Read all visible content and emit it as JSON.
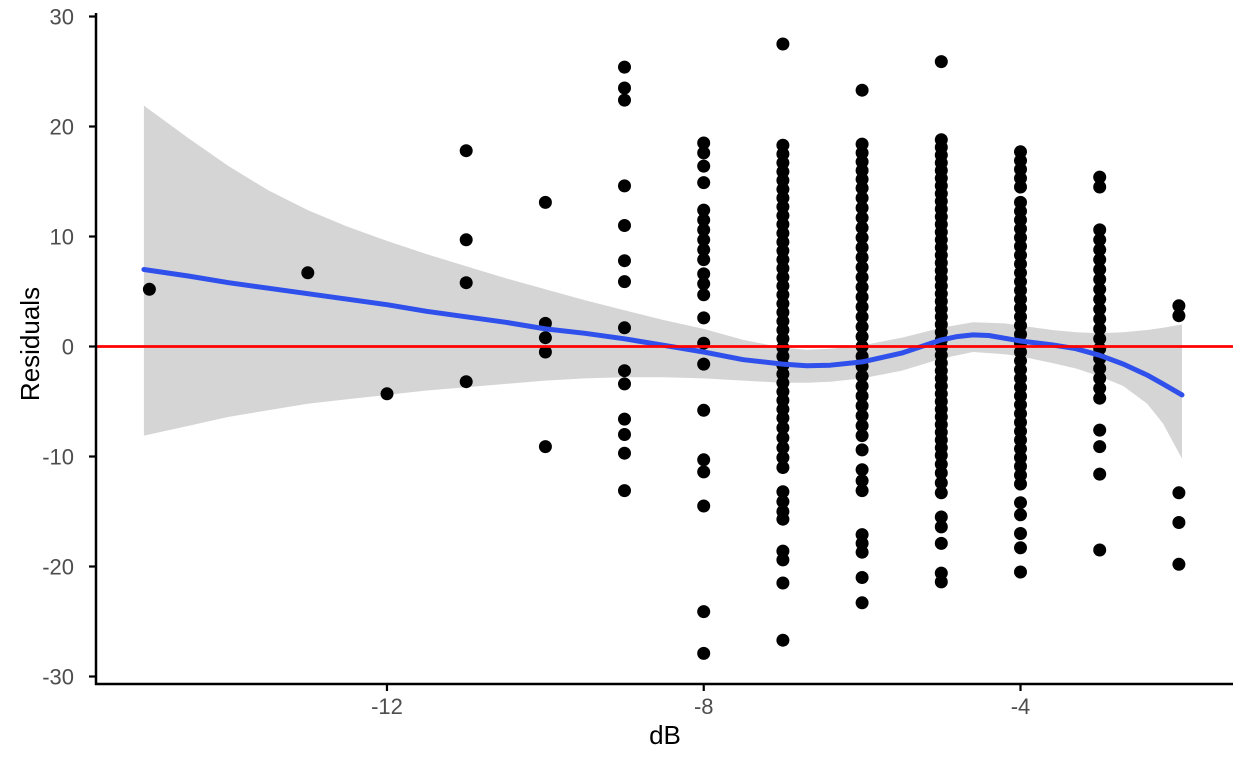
{
  "chart_data": {
    "type": "scatter",
    "title": "",
    "xlabel": "dB",
    "ylabel": "Residuals",
    "x_ticks": [
      -12,
      -8,
      -4
    ],
    "y_ticks": [
      30,
      20,
      10,
      0,
      -10,
      -20,
      -30
    ],
    "xlim": [
      -15.66,
      -1.32
    ],
    "ylim": [
      -30.7,
      30.2
    ],
    "grid": false,
    "legend": "none",
    "zero_line_y": 0,
    "colors": {
      "point": "#000000",
      "smooth": "#3050EC",
      "ribbon": "#D5D5D5",
      "zero_line": "#FF0000",
      "axis": "#000000",
      "tick_label": "#4D4D4D",
      "axis_title": "#000000"
    },
    "columns": [
      {
        "x": -15,
        "residuals": [
          5.2
        ]
      },
      {
        "x": -13,
        "residuals": [
          6.7
        ]
      },
      {
        "x": -12,
        "residuals": [
          -4.3
        ]
      },
      {
        "x": -11,
        "residuals": [
          17.8,
          9.7,
          5.8,
          -3.2
        ]
      },
      {
        "x": -10,
        "residuals": [
          13.1,
          2.1,
          0.8,
          -0.5,
          -9.1
        ]
      },
      {
        "x": -9,
        "residuals": [
          25.4,
          23.5,
          22.4,
          14.6,
          11.0,
          7.8,
          5.9,
          1.7,
          -2.2,
          -3.4,
          -6.6,
          -8.0,
          -9.7,
          -13.1
        ]
      },
      {
        "x": -8,
        "residuals": [
          18.5,
          17.6,
          16.4,
          14.9,
          12.4,
          11.5,
          10.6,
          9.7,
          8.8,
          7.9,
          6.6,
          5.7,
          4.7,
          2.6,
          0.3,
          -1.6,
          -5.8,
          -10.3,
          -11.4,
          -14.5,
          -24.1,
          -27.9
        ]
      },
      {
        "x": -7,
        "residuals": [
          27.5,
          18.3,
          17.5,
          16.7,
          15.9,
          15.1,
          14.3,
          13.5,
          12.7,
          11.9,
          11.1,
          10.3,
          9.5,
          8.7,
          7.9,
          7.1,
          6.3,
          5.5,
          4.7,
          3.9,
          3.1,
          2.3,
          1.5,
          0.7,
          -0.1,
          -0.9,
          -1.7,
          -2.5,
          -3.3,
          -4.1,
          -4.9,
          -5.7,
          -6.5,
          -7.4,
          -8.3,
          -9.2,
          -10.1,
          -11.0,
          -13.2,
          -14.1,
          -15.0,
          -15.7,
          -18.6,
          -19.4,
          -21.5,
          -26.7
        ]
      },
      {
        "x": -6,
        "residuals": [
          23.3,
          18.4,
          17.6,
          16.8,
          16.0,
          15.2,
          14.4,
          13.5,
          12.6,
          11.7,
          10.8,
          9.9,
          9.0,
          8.1,
          7.2,
          6.3,
          5.4,
          4.5,
          3.6,
          2.7,
          1.8,
          0.9,
          0.0,
          -0.9,
          -1.8,
          -2.7,
          -3.6,
          -4.5,
          -5.4,
          -6.3,
          -7.2,
          -8.1,
          -9.4,
          -11.2,
          -12.2,
          -13.1,
          -17.1,
          -17.9,
          -18.7,
          -21.0,
          -23.3
        ]
      },
      {
        "x": -5,
        "residuals": [
          25.9,
          18.8,
          18.1,
          17.4,
          16.7,
          16.0,
          15.3,
          14.6,
          13.9,
          13.2,
          12.5,
          11.8,
          11.1,
          10.4,
          9.7,
          9.0,
          8.3,
          7.6,
          6.9,
          6.2,
          5.5,
          4.8,
          4.1,
          3.4,
          2.7,
          2.0,
          1.3,
          0.6,
          -0.1,
          -0.8,
          -1.5,
          -2.2,
          -2.9,
          -3.6,
          -4.3,
          -5.0,
          -5.7,
          -6.4,
          -7.1,
          -7.8,
          -8.5,
          -9.2,
          -9.9,
          -10.7,
          -11.5,
          -12.4,
          -13.3,
          -15.5,
          -16.4,
          -17.9,
          -20.6,
          -21.4
        ]
      },
      {
        "x": -4,
        "residuals": [
          17.7,
          16.9,
          16.1,
          15.3,
          14.5,
          13.1,
          12.3,
          11.5,
          10.7,
          9.9,
          9.1,
          8.3,
          7.5,
          6.7,
          5.9,
          5.1,
          4.3,
          3.5,
          2.7,
          1.9,
          1.1,
          0.3,
          -0.5,
          -1.3,
          -2.1,
          -2.9,
          -3.7,
          -4.5,
          -5.3,
          -6.1,
          -6.9,
          -7.7,
          -8.5,
          -9.3,
          -10.1,
          -10.9,
          -11.7,
          -12.5,
          -14.2,
          -15.3,
          -17.0,
          -18.3,
          -20.5
        ]
      },
      {
        "x": -3,
        "residuals": [
          15.4,
          14.5,
          10.6,
          9.7,
          8.8,
          7.9,
          7.0,
          6.1,
          5.2,
          4.3,
          3.4,
          2.5,
          1.6,
          0.7,
          -0.2,
          -1.1,
          -2.0,
          -2.9,
          -3.8,
          -4.7,
          -7.6,
          -9.1,
          -11.6,
          -18.5
        ]
      },
      {
        "x": -2,
        "residuals": [
          3.7,
          2.8,
          -13.3,
          -16.0,
          -19.8
        ]
      }
    ],
    "smooth": [
      [
        -15.07,
        7.0
      ],
      [
        -14.5,
        6.4
      ],
      [
        -14,
        5.8
      ],
      [
        -13.5,
        5.3
      ],
      [
        -13,
        4.8
      ],
      [
        -12.5,
        4.3
      ],
      [
        -12,
        3.8
      ],
      [
        -11.5,
        3.2
      ],
      [
        -11,
        2.7
      ],
      [
        -10.5,
        2.2
      ],
      [
        -10,
        1.6
      ],
      [
        -9.5,
        1.2
      ],
      [
        -9,
        0.7
      ],
      [
        -8.5,
        0.1
      ],
      [
        -8,
        -0.5
      ],
      [
        -7.5,
        -1.2
      ],
      [
        -7,
        -1.6
      ],
      [
        -6.7,
        -1.75
      ],
      [
        -6.4,
        -1.7
      ],
      [
        -6,
        -1.4
      ],
      [
        -5.5,
        -0.6
      ],
      [
        -5,
        0.6
      ],
      [
        -4.8,
        0.9
      ],
      [
        -4.6,
        1.05
      ],
      [
        -4.4,
        1.0
      ],
      [
        -4,
        0.5
      ],
      [
        -3.6,
        0.15
      ],
      [
        -3.3,
        -0.2
      ],
      [
        -3,
        -0.8
      ],
      [
        -2.7,
        -1.6
      ],
      [
        -2.4,
        -2.6
      ],
      [
        -2.2,
        -3.4
      ],
      [
        -1.96,
        -4.4
      ]
    ],
    "ribbon": [
      [
        -15.07,
        21.9,
        -8.1
      ],
      [
        -14.5,
        18.9,
        -7.2
      ],
      [
        -14,
        16.4,
        -6.4
      ],
      [
        -13.5,
        14.2,
        -5.8
      ],
      [
        -13,
        12.4,
        -5.2
      ],
      [
        -12.5,
        10.9,
        -4.8
      ],
      [
        -12,
        9.6,
        -4.4
      ],
      [
        -11.5,
        8.4,
        -4.0
      ],
      [
        -11,
        7.3,
        -3.7
      ],
      [
        -10.5,
        6.2,
        -3.4
      ],
      [
        -10,
        5.2,
        -3.1
      ],
      [
        -9.5,
        4.2,
        -2.9
      ],
      [
        -9,
        3.3,
        -2.8
      ],
      [
        -8.5,
        2.4,
        -2.8
      ],
      [
        -8,
        1.6,
        -2.9
      ],
      [
        -7.5,
        0.6,
        -3.1
      ],
      [
        -7,
        -0.1,
        -3.3
      ],
      [
        -6.7,
        -0.3,
        -3.3
      ],
      [
        -6.4,
        -0.2,
        -3.2
      ],
      [
        -6,
        0.1,
        -2.9
      ],
      [
        -5.5,
        0.8,
        -2.2
      ],
      [
        -5,
        1.7,
        -1.1
      ],
      [
        -4.6,
        2.2,
        -0.5
      ],
      [
        -4.2,
        2.1,
        -0.7
      ],
      [
        -4,
        1.9,
        -0.9
      ],
      [
        -3.6,
        1.5,
        -1.5
      ],
      [
        -3.3,
        1.3,
        -2.0
      ],
      [
        -3,
        1.2,
        -2.7
      ],
      [
        -2.7,
        1.3,
        -3.6
      ],
      [
        -2.4,
        1.5,
        -5.2
      ],
      [
        -2.2,
        1.7,
        -7.0
      ],
      [
        -1.96,
        2.0,
        -10.2
      ]
    ]
  }
}
